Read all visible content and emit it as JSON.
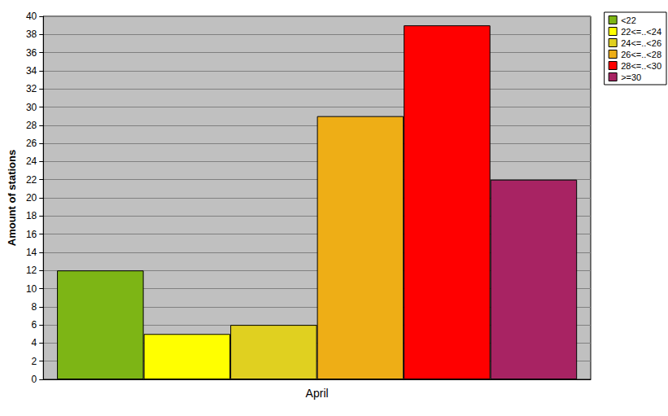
{
  "chart_data": {
    "type": "bar",
    "categories": [
      "April"
    ],
    "series": [
      {
        "name": "<22",
        "color": "#7db515",
        "values": [
          12
        ]
      },
      {
        "name": "22<=..<24",
        "color": "#ffff00",
        "values": [
          5
        ]
      },
      {
        "name": "24<=..<26",
        "color": "#e0d020",
        "values": [
          6
        ]
      },
      {
        "name": "26<=..<28",
        "color": "#eeae16",
        "values": [
          29
        ]
      },
      {
        "name": "28<=..<30",
        "color": "#ff0000",
        "values": [
          39
        ]
      },
      {
        "name": ">=30",
        "color": "#a82363",
        "values": [
          22
        ]
      }
    ],
    "y_label": "Amount of stations",
    "ylim": [
      0,
      40
    ],
    "yticks": [
      0,
      2,
      4,
      6,
      8,
      10,
      12,
      14,
      16,
      18,
      20,
      22,
      24,
      26,
      28,
      30,
      32,
      34,
      36,
      38,
      40
    ],
    "grid": true,
    "legend": "upper right"
  }
}
